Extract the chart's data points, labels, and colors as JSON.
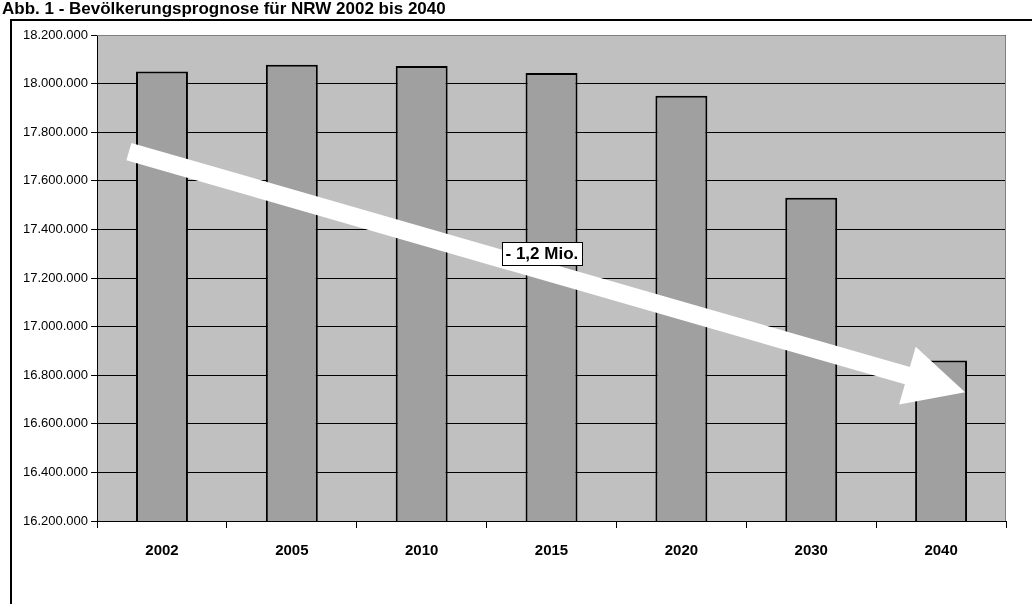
{
  "chart_data": {
    "type": "bar",
    "title": "Abb. 1 - Bevölkerungsprognose für NRW 2002 bis 2040",
    "categories": [
      "2002",
      "2005",
      "2010",
      "2015",
      "2020",
      "2030",
      "2040"
    ],
    "values": [
      18050000,
      18078000,
      18072000,
      18044000,
      17950000,
      17530000,
      16860000
    ],
    "color": "#a0a0a0",
    "ylim": [
      16200000,
      18200000
    ],
    "yticks": [
      {
        "value": 16200000,
        "label": "16.200.000"
      },
      {
        "value": 16400000,
        "label": "16.400.000"
      },
      {
        "value": 16600000,
        "label": "16.600.000"
      },
      {
        "value": 16800000,
        "label": "16.800.000"
      },
      {
        "value": 17000000,
        "label": "17.000.000"
      },
      {
        "value": 17200000,
        "label": "17.200.000"
      },
      {
        "value": 17400000,
        "label": "17.400.000"
      },
      {
        "value": 17600000,
        "label": "17.600.000"
      },
      {
        "value": 17800000,
        "label": "17.800.000"
      },
      {
        "value": 18000000,
        "label": "18.000.000"
      },
      {
        "value": 18200000,
        "label": "18.200.000"
      }
    ],
    "grid": "y",
    "legend": false,
    "annotations": [
      "- 1,2 Mio."
    ]
  }
}
